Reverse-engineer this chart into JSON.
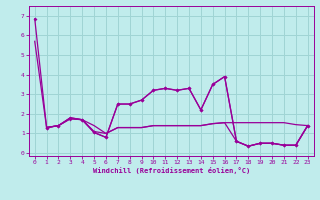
{
  "xlabel": "Windchill (Refroidissement éolien,°C)",
  "bg_color": "#c0ecec",
  "grid_color": "#a0d4d4",
  "line_color": "#990099",
  "xlim": [
    -0.5,
    23.5
  ],
  "ylim": [
    -0.15,
    7.5
  ],
  "xticks": [
    0,
    1,
    2,
    3,
    4,
    5,
    6,
    7,
    8,
    9,
    10,
    11,
    12,
    13,
    14,
    15,
    16,
    17,
    18,
    19,
    20,
    21,
    22,
    23
  ],
  "yticks": [
    0,
    1,
    2,
    3,
    4,
    5,
    6,
    7
  ],
  "line1": [
    [
      0,
      6.85
    ],
    [
      1,
      1.3
    ],
    [
      2,
      1.4
    ],
    [
      3,
      1.8
    ],
    [
      4,
      1.7
    ],
    [
      5,
      1.05
    ],
    [
      6,
      0.8
    ],
    [
      7,
      2.5
    ],
    [
      8,
      2.5
    ],
    [
      9,
      2.7
    ],
    [
      10,
      3.2
    ],
    [
      11,
      3.3
    ],
    [
      12,
      3.2
    ],
    [
      13,
      3.3
    ],
    [
      14,
      2.2
    ],
    [
      15,
      3.5
    ],
    [
      16,
      3.9
    ],
    [
      17,
      0.6
    ],
    [
      18,
      0.35
    ],
    [
      19,
      0.5
    ],
    [
      20,
      0.5
    ],
    [
      21,
      0.4
    ],
    [
      22,
      0.4
    ],
    [
      23,
      1.4
    ]
  ],
  "line2": [
    [
      0,
      5.7
    ],
    [
      1,
      1.3
    ],
    [
      2,
      1.4
    ],
    [
      3,
      1.8
    ],
    [
      4,
      1.7
    ],
    [
      5,
      1.4
    ],
    [
      6,
      1.0
    ],
    [
      7,
      1.3
    ],
    [
      8,
      1.3
    ],
    [
      9,
      1.3
    ],
    [
      10,
      1.4
    ],
    [
      11,
      1.4
    ],
    [
      12,
      1.4
    ],
    [
      13,
      1.4
    ],
    [
      14,
      1.4
    ],
    [
      15,
      1.5
    ],
    [
      16,
      1.55
    ],
    [
      17,
      1.55
    ],
    [
      18,
      1.55
    ],
    [
      19,
      1.55
    ],
    [
      20,
      1.55
    ],
    [
      21,
      1.55
    ],
    [
      22,
      1.45
    ],
    [
      23,
      1.4
    ]
  ],
  "line3": [
    [
      1,
      1.3
    ],
    [
      2,
      1.4
    ],
    [
      3,
      1.75
    ],
    [
      4,
      1.7
    ],
    [
      5,
      1.05
    ],
    [
      6,
      0.8
    ],
    [
      7,
      2.5
    ],
    [
      8,
      2.5
    ],
    [
      9,
      2.7
    ],
    [
      10,
      3.2
    ],
    [
      11,
      3.3
    ],
    [
      12,
      3.2
    ],
    [
      13,
      3.3
    ],
    [
      14,
      2.2
    ],
    [
      15,
      3.5
    ],
    [
      16,
      3.9
    ],
    [
      17,
      0.6
    ],
    [
      18,
      0.35
    ],
    [
      19,
      0.5
    ],
    [
      20,
      0.5
    ],
    [
      21,
      0.4
    ],
    [
      22,
      0.4
    ],
    [
      23,
      1.4
    ]
  ],
  "line4": [
    [
      1,
      1.3
    ],
    [
      2,
      1.4
    ],
    [
      3,
      1.75
    ],
    [
      4,
      1.7
    ],
    [
      5,
      1.1
    ],
    [
      6,
      1.0
    ],
    [
      7,
      1.3
    ],
    [
      8,
      1.3
    ],
    [
      9,
      1.3
    ],
    [
      10,
      1.4
    ],
    [
      11,
      1.4
    ],
    [
      12,
      1.4
    ],
    [
      13,
      1.4
    ],
    [
      14,
      1.4
    ],
    [
      15,
      1.5
    ],
    [
      16,
      1.55
    ],
    [
      17,
      0.6
    ],
    [
      18,
      0.35
    ],
    [
      19,
      0.5
    ],
    [
      20,
      0.5
    ],
    [
      21,
      0.4
    ],
    [
      22,
      0.4
    ],
    [
      23,
      1.4
    ]
  ]
}
